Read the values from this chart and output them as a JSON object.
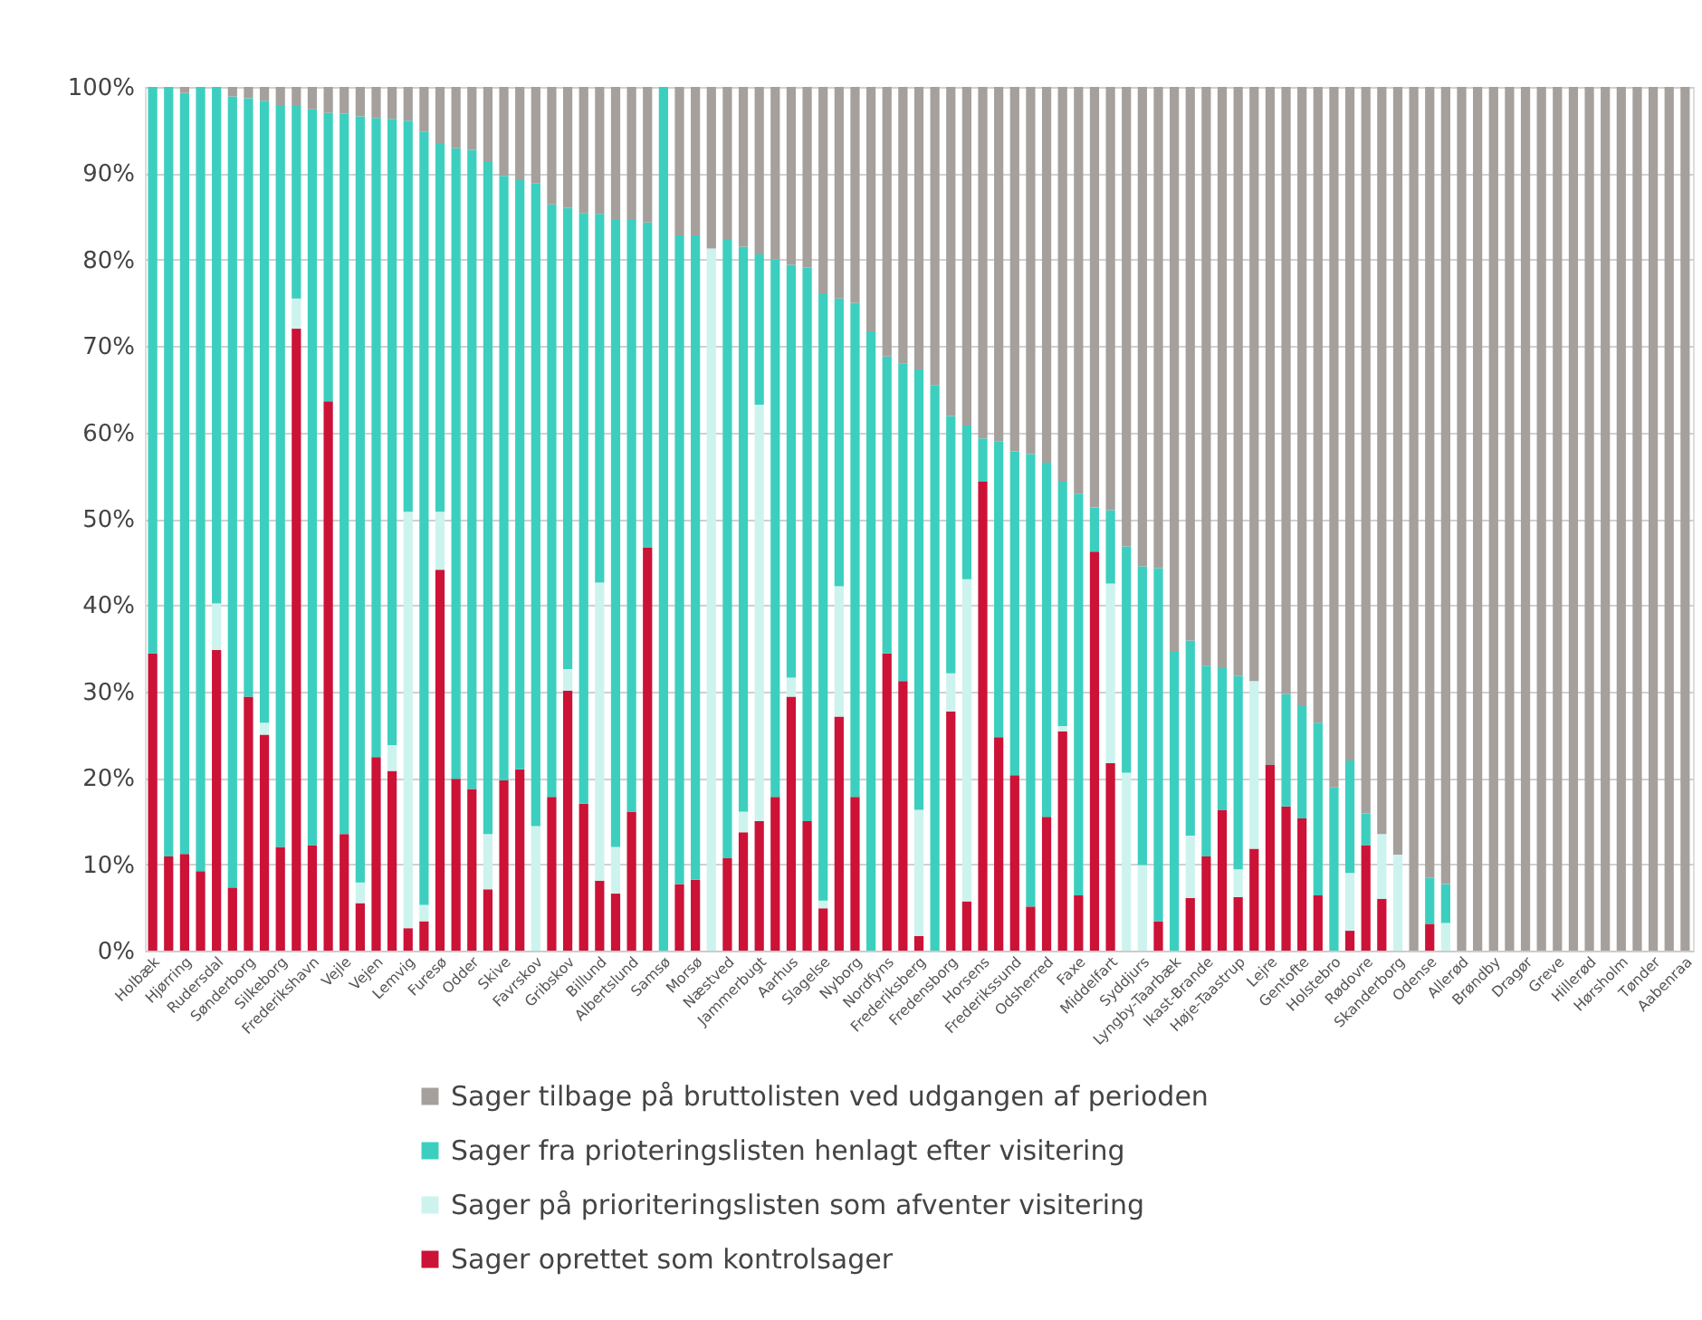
{
  "chart_data": {
    "type": "bar",
    "stacked": true,
    "legend": "bottom",
    "grid": "y",
    "categories": [
      "Holbæk",
      null,
      "Hjørring",
      null,
      "Rudersdal",
      null,
      "Sønderborg",
      null,
      "Silkeborg",
      null,
      "Frederikshavn",
      null,
      "Vejle",
      null,
      "Vejen",
      null,
      "Lemvig",
      null,
      "Furesø",
      null,
      "Odder",
      null,
      "Skive",
      null,
      "Favrskov",
      null,
      "Gribskov",
      null,
      "Billund",
      null,
      "Albertslund",
      null,
      "Samsø",
      null,
      "Morsø",
      null,
      "Næstved",
      null,
      "Jammerbugt",
      null,
      "Aarhus",
      null,
      "Slagelse",
      null,
      "Nyborg",
      null,
      "Nordfyns",
      null,
      "Frederiksberg",
      null,
      "Fredensborg",
      null,
      "Horsens",
      null,
      "Frederikssund",
      null,
      "Odsherred",
      null,
      "Faxe",
      null,
      "Middelfart",
      null,
      "Syddjurs",
      null,
      "Lyngby-Taarbæk",
      null,
      "Ikast-Brande",
      null,
      "Høje-Taastrup",
      null,
      "Lejre",
      null,
      "Gentofte",
      null,
      "Holstebro",
      null,
      "Rødovre",
      null,
      "Skanderborg",
      null,
      "Odense",
      null,
      "Allerød",
      null,
      "Brøndby",
      null,
      "Dragør",
      null,
      "Greve",
      null,
      "Hillerød",
      null,
      "Hørsholm",
      null,
      "Tønder",
      null,
      "Aabenraa"
    ],
    "ylim": [
      0,
      100
    ],
    "yticks": [
      {
        "value": 0,
        "label": "0%"
      },
      {
        "value": 10,
        "label": "10%"
      },
      {
        "value": 20,
        "label": "20%"
      },
      {
        "value": 30,
        "label": "30%"
      },
      {
        "value": 40,
        "label": "40%"
      },
      {
        "value": 50,
        "label": "50%"
      },
      {
        "value": 60,
        "label": "60%"
      },
      {
        "value": 70,
        "label": "70%"
      },
      {
        "value": 80,
        "label": "80%"
      },
      {
        "value": 90,
        "label": "90%"
      },
      {
        "value": 100,
        "label": "100%"
      }
    ],
    "series": [
      {
        "name": "Sager oprettet som kontrolsager",
        "color": "#cc1236",
        "values": [
          34.4,
          10.9,
          11.2,
          9.2,
          34.8,
          7.3,
          29.4,
          25.0,
          12.0,
          72.0,
          12.2,
          63.6,
          13.5,
          5.5,
          22.4,
          20.8,
          2.6,
          3.4,
          44.1,
          19.9,
          18.7,
          7.1,
          19.7,
          21.0,
          0,
          17.8,
          30.1,
          17.0,
          8.1,
          6.6,
          16.1,
          46.7,
          0,
          7.7,
          8.2,
          0,
          10.7,
          13.7,
          15.0,
          17.8,
          29.4,
          15.0,
          4.9,
          27.1,
          17.8,
          0,
          34.4,
          31.2,
          1.7,
          0,
          27.7,
          5.7,
          54.3,
          24.7,
          20.3,
          5.1,
          15.5,
          25.4,
          6.4,
          46.2,
          21.7,
          0,
          0,
          3.4,
          0,
          6.1,
          10.9,
          16.3,
          6.2,
          11.8,
          21.5,
          16.7,
          15.3,
          6.4,
          0,
          2.3,
          12.2,
          6.0,
          0,
          0,
          3.1,
          0,
          0,
          0,
          0,
          0,
          0,
          0,
          0,
          0,
          0,
          0,
          0,
          0,
          0,
          0,
          0
        ]
      },
      {
        "name": "Sager på prioriteringslisten som afventer visitering",
        "color": "#cdf3ee",
        "values": [
          0,
          0,
          0,
          0,
          5.4,
          0,
          0,
          1.4,
          0,
          3.5,
          0,
          0,
          0,
          2.4,
          0,
          3.0,
          48.2,
          1.9,
          6.7,
          0,
          0,
          6.4,
          0,
          0,
          14.4,
          0,
          2.5,
          0,
          34.5,
          5.4,
          0,
          0,
          0,
          0,
          0,
          81.3,
          0,
          2.4,
          48.2,
          0,
          2.2,
          0,
          0.9,
          15.1,
          0,
          0,
          0,
          0,
          14.6,
          0,
          4.4,
          37.3,
          0,
          0,
          0,
          0,
          0,
          0.6,
          0,
          0,
          20.8,
          20.6,
          9.9,
          0,
          0,
          7.2,
          0,
          0,
          3.2,
          19.4,
          0,
          0,
          0,
          0,
          0,
          6.7,
          0,
          7.5,
          11.1,
          0,
          0,
          3.2,
          0,
          0,
          0,
          0,
          0,
          0,
          0,
          0,
          0,
          0,
          0,
          0,
          0,
          0,
          0
        ]
      },
      {
        "name": "Sager fra prioteringslisten henlagt efter visitering",
        "color": "#3ccfbf",
        "values": [
          65.6,
          89.1,
          88.1,
          90.8,
          59.8,
          91.6,
          69.3,
          72.0,
          85.9,
          22.3,
          85.2,
          33.4,
          83.4,
          88.7,
          74.0,
          72.5,
          45.3,
          89.5,
          42.6,
          73.0,
          74.0,
          77.9,
          70.0,
          68.2,
          74.4,
          68.6,
          53.4,
          68.4,
          42.7,
          72.7,
          68.6,
          37.6,
          100,
          75.1,
          74.6,
          0,
          71.7,
          65.4,
          17.4,
          62.2,
          47.8,
          64.1,
          70.3,
          33.3,
          57.2,
          71.7,
          34.4,
          36.8,
          51.0,
          65.5,
          29.8,
          17.8,
          5.0,
          34.3,
          37.5,
          52.4,
          41.0,
          28.3,
          46.5,
          5.1,
          8.5,
          26.2,
          34.6,
          40.9,
          34.6,
          22.6,
          22.1,
          16.4,
          22.4,
          0,
          0,
          13.0,
          13.0,
          20.0,
          18.9,
          13.0,
          3.7,
          0,
          0,
          0,
          5.3,
          4.5,
          0,
          0,
          0,
          0,
          0,
          0,
          0,
          0,
          0,
          0,
          0,
          0,
          0,
          0,
          0
        ]
      },
      {
        "name": "Sager tilbage på bruttolisten ved udgangen af perioden",
        "color": "#a5a09c",
        "values": [
          0,
          0,
          0.7,
          0,
          0,
          1.1,
          1.3,
          1.6,
          2.1,
          2.2,
          2.6,
          3.0,
          3.1,
          3.4,
          3.6,
          3.7,
          3.9,
          5.2,
          6.6,
          7.1,
          7.3,
          8.6,
          10.3,
          10.8,
          11.2,
          13.6,
          14.0,
          14.6,
          14.7,
          15.3,
          15.3,
          15.7,
          0,
          17.2,
          17.2,
          18.7,
          17.6,
          18.5,
          19.4,
          20.0,
          20.6,
          20.9,
          23.9,
          24.5,
          25.0,
          28.3,
          31.2,
          32.0,
          32.7,
          34.5,
          38.1,
          39.2,
          40.7,
          41.0,
          42.2,
          42.5,
          43.5,
          45.7,
          47.1,
          48.7,
          49.0,
          53.2,
          55.5,
          55.7,
          65.4,
          64.1,
          67.0,
          67.3,
          68.2,
          68.8,
          78.5,
          70.3,
          71.7,
          73.6,
          81.1,
          78.0,
          84.1,
          86.5,
          88.9,
          100,
          91.6,
          92.3,
          100,
          100,
          100,
          100,
          100,
          100,
          100,
          100,
          100,
          100,
          100,
          100,
          100,
          100,
          100
        ]
      }
    ]
  }
}
